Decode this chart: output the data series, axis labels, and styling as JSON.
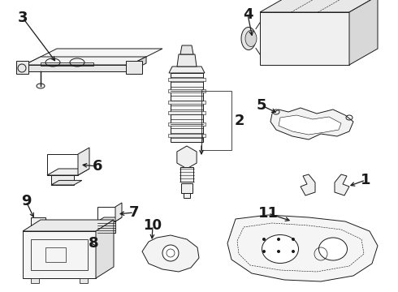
{
  "bg_color": "#ffffff",
  "figsize": [
    4.9,
    3.6
  ],
  "dpi": 100,
  "line_color": "#1a1a1a",
  "lw": 0.7
}
